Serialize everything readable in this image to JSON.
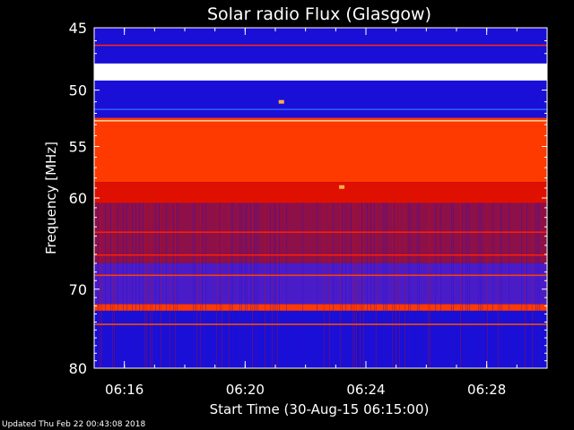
{
  "chart_data": {
    "type": "heatmap",
    "title": "Solar radio Flux (Glasgow)",
    "xlabel": "Start Time (30-Aug-15 06:15:00)",
    "ylabel": "Frequency [MHz]",
    "xlim": [
      "06:15",
      "06:30"
    ],
    "ylim": [
      45,
      80
    ],
    "y_scale": "log",
    "y_ticks": [
      45,
      50,
      55,
      60,
      70,
      80
    ],
    "x_ticks": [
      "06:16",
      "06:20",
      "06:24",
      "06:28"
    ],
    "colormap": [
      "#0000b4",
      "#3a22d0",
      "#8a0c3a",
      "#d80000",
      "#ff5000",
      "#ffffff"
    ],
    "frequency_bands": [
      {
        "from": 45.0,
        "to": 47.8,
        "level": "low"
      },
      {
        "from": 47.8,
        "to": 49.2,
        "level": "saturated"
      },
      {
        "from": 49.2,
        "to": 52.4,
        "level": "low"
      },
      {
        "from": 52.4,
        "to": 53.2,
        "level": "high"
      },
      {
        "from": 53.2,
        "to": 58.4,
        "level": "high"
      },
      {
        "from": 58.4,
        "to": 60.5,
        "level": "medium-high"
      },
      {
        "from": 60.5,
        "to": 67.0,
        "level": "medium"
      },
      {
        "from": 67.0,
        "to": 71.8,
        "level": "medium-low"
      },
      {
        "from": 71.8,
        "to": 72.6,
        "level": "high"
      },
      {
        "from": 72.6,
        "to": 80.0,
        "level": "low"
      }
    ],
    "bursts": [
      {
        "time": "06:23.2",
        "frequency": 58.9
      },
      {
        "time": "06:21.2",
        "frequency": 51.0
      }
    ]
  },
  "footer": "Updated Thu Feb 22 00:43:08 2018"
}
